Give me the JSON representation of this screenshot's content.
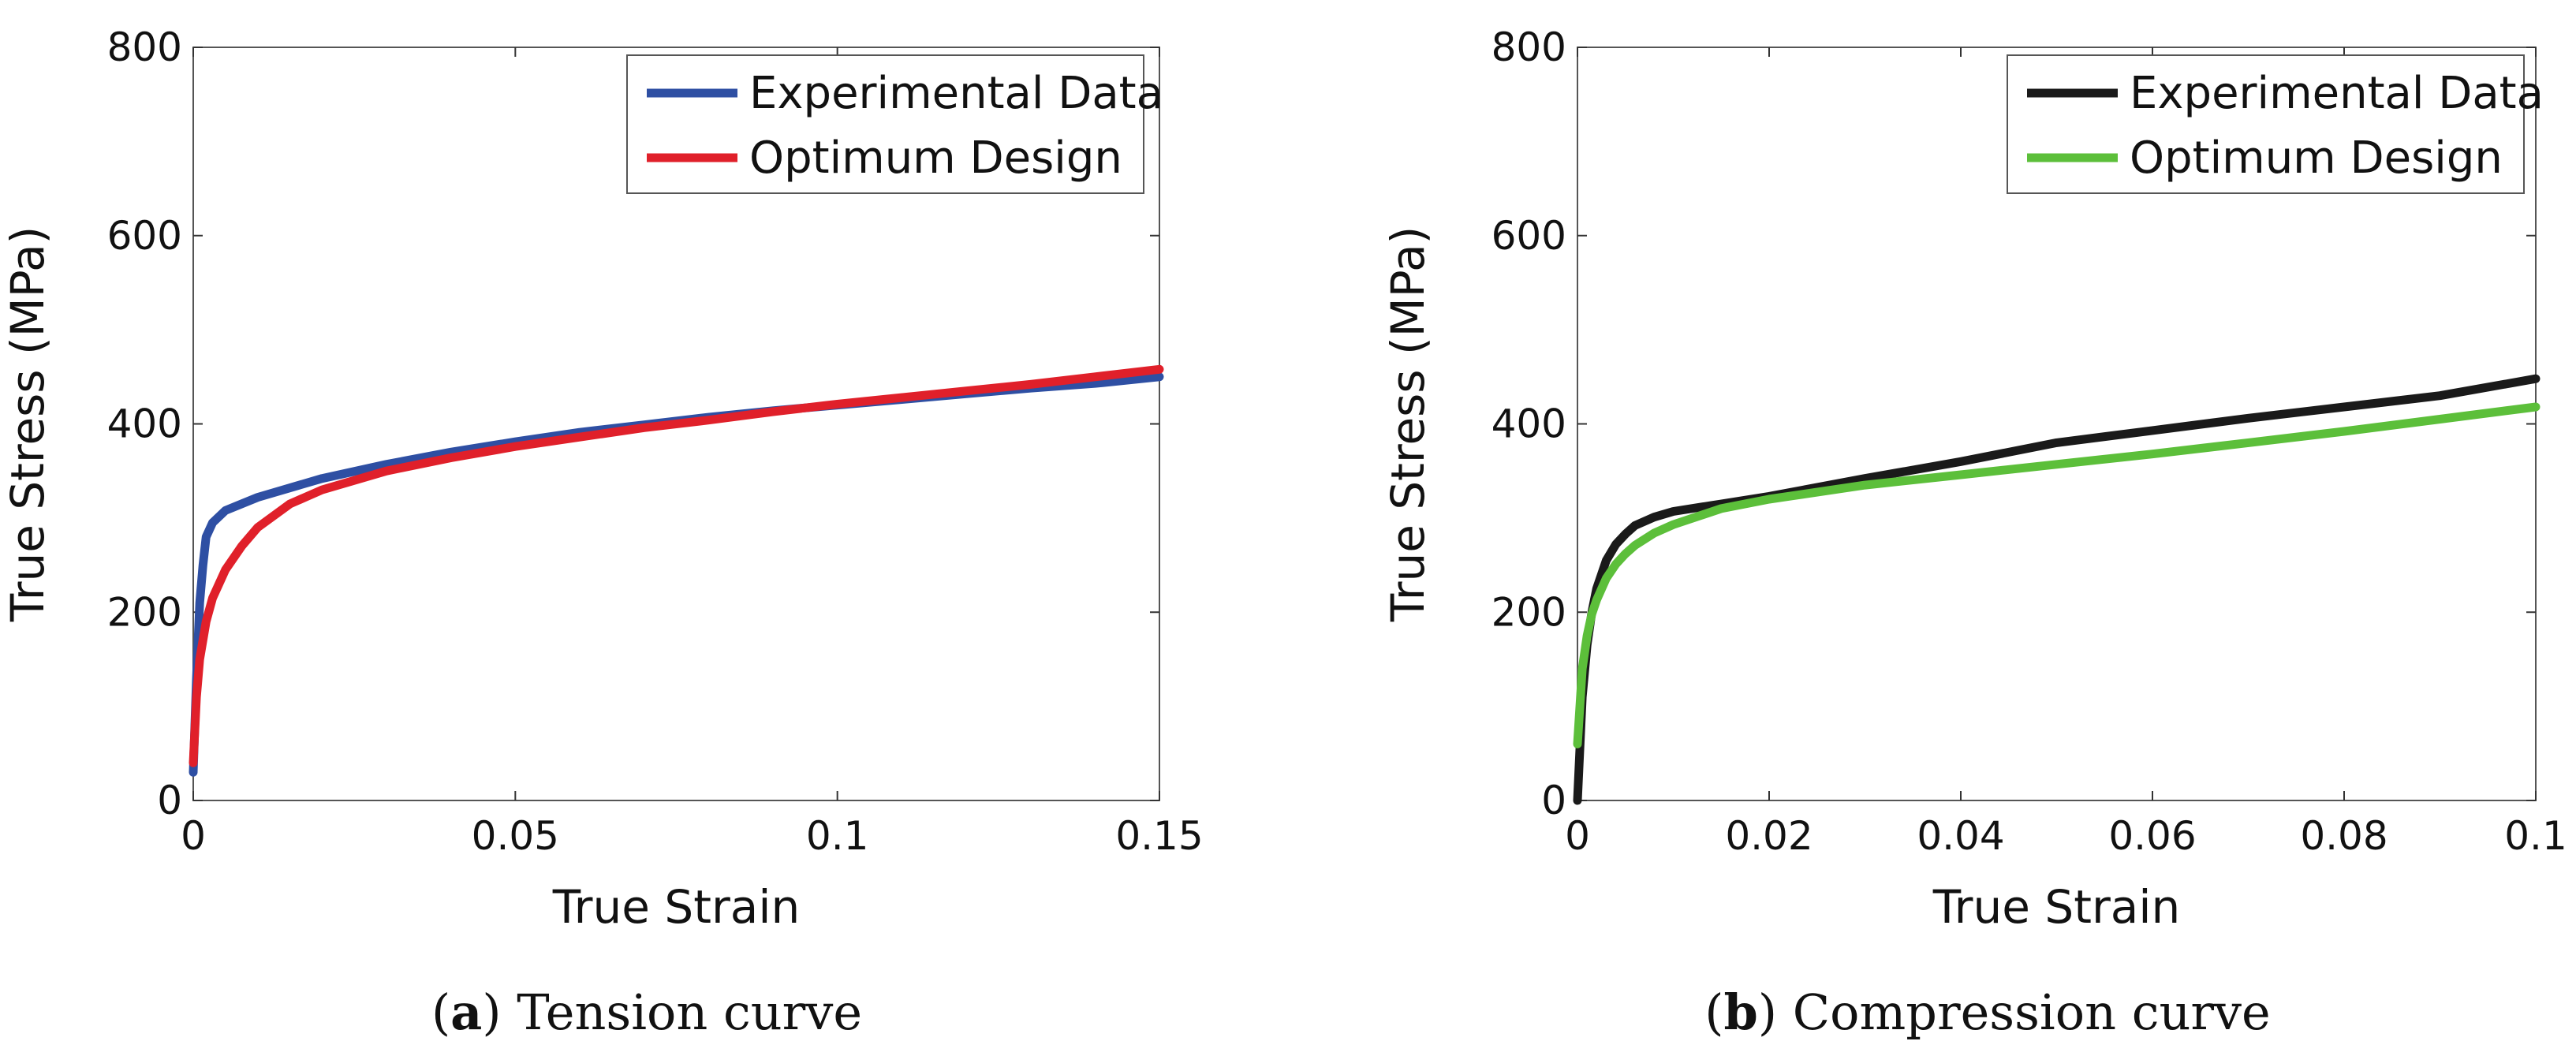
{
  "chart_data": [
    {
      "type": "line",
      "caption_tag": "a",
      "caption_text": "Tension curve",
      "xlabel": "True Strain",
      "ylabel": "True Stress (MPa)",
      "xlim": [
        0,
        0.15
      ],
      "ylim": [
        0,
        800
      ],
      "xticks": [
        0,
        0.05,
        0.1,
        0.15
      ],
      "xtick_labels": [
        "0",
        "0.05",
        "0.1",
        "0.15"
      ],
      "yticks": [
        0,
        200,
        400,
        600,
        800
      ],
      "ytick_labels": [
        "0",
        "200",
        "400",
        "600",
        "800"
      ],
      "legend_position": "top-right",
      "series": [
        {
          "name": "Experimental Data",
          "color": "#2e4fa3",
          "x": [
            0,
            0.0005,
            0.001,
            0.0015,
            0.002,
            0.003,
            0.005,
            0.01,
            0.02,
            0.03,
            0.04,
            0.05,
            0.06,
            0.07,
            0.08,
            0.09,
            0.1,
            0.11,
            0.12,
            0.13,
            0.14,
            0.15
          ],
          "y": [
            30,
            130,
            210,
            250,
            280,
            295,
            308,
            322,
            342,
            357,
            370,
            381,
            391,
            399,
            407,
            414,
            420,
            426,
            432,
            438,
            443,
            450
          ]
        },
        {
          "name": "Optimum Design",
          "color": "#e0202a",
          "x": [
            0,
            0.0005,
            0.001,
            0.002,
            0.003,
            0.005,
            0.0075,
            0.01,
            0.015,
            0.02,
            0.03,
            0.04,
            0.05,
            0.06,
            0.07,
            0.08,
            0.09,
            0.1,
            0.11,
            0.12,
            0.13,
            0.14,
            0.15
          ],
          "y": [
            40,
            110,
            150,
            190,
            215,
            245,
            270,
            290,
            315,
            330,
            350,
            364,
            376,
            386,
            396,
            404,
            413,
            421,
            428,
            435,
            442,
            450,
            458
          ]
        }
      ]
    },
    {
      "type": "line",
      "caption_tag": "b",
      "caption_text": "Compression curve",
      "xlabel": "True Strain",
      "ylabel": "True Stress (MPa)",
      "xlim": [
        0,
        0.1
      ],
      "ylim": [
        0,
        800
      ],
      "xticks": [
        0,
        0.02,
        0.04,
        0.06,
        0.08,
        0.1
      ],
      "xtick_labels": [
        "0",
        "0.02",
        "0.04",
        "0.06",
        "0.08",
        "0.1"
      ],
      "yticks": [
        0,
        200,
        400,
        600,
        800
      ],
      "ytick_labels": [
        "0",
        "200",
        "400",
        "600",
        "800"
      ],
      "legend_position": "top-right",
      "series": [
        {
          "name": "Experimental Data",
          "color": "#1a1a1a",
          "x": [
            0,
            0.0005,
            0.001,
            0.0015,
            0.002,
            0.003,
            0.004,
            0.005,
            0.006,
            0.008,
            0.01,
            0.015,
            0.02,
            0.03,
            0.04,
            0.05,
            0.06,
            0.07,
            0.08,
            0.09,
            0.1
          ],
          "y": [
            0,
            110,
            165,
            200,
            225,
            255,
            272,
            283,
            292,
            301,
            307,
            315,
            323,
            342,
            360,
            380,
            393,
            406,
            418,
            430,
            448
          ]
        },
        {
          "name": "Optimum Design",
          "color": "#5cbf3a",
          "x": [
            0,
            0.0005,
            0.001,
            0.0015,
            0.002,
            0.003,
            0.004,
            0.005,
            0.006,
            0.008,
            0.01,
            0.015,
            0.02,
            0.03,
            0.04,
            0.05,
            0.06,
            0.07,
            0.08,
            0.09,
            0.1
          ],
          "y": [
            60,
            140,
            175,
            198,
            213,
            236,
            251,
            262,
            271,
            284,
            293,
            310,
            320,
            335,
            346,
            357,
            368,
            380,
            392,
            405,
            418
          ]
        }
      ]
    }
  ]
}
